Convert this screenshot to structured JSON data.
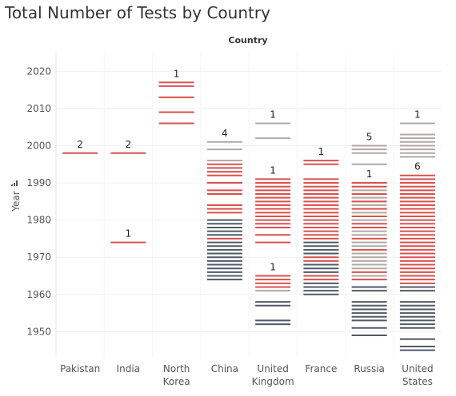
{
  "title": "Total Number of Tests by Country",
  "chart_data": {
    "type": "gantt-ticks",
    "title": "Total Number of Tests by Country",
    "column_header": "Country",
    "ylabel": "Year",
    "ylim": [
      1943,
      2025
    ],
    "y_ticks": [
      1950,
      1960,
      1970,
      1980,
      1990,
      2000,
      2010,
      2020
    ],
    "colors": {
      "red": "#d9514e",
      "gray": "#b0a9a5",
      "dark": "#505a66"
    },
    "categories": [
      {
        "label": [
          "Pakistan"
        ],
        "ticks": [
          {
            "year": 1998,
            "c": "red"
          }
        ],
        "labels": [
          {
            "text": "2",
            "year": 1998
          }
        ]
      },
      {
        "label": [
          "India"
        ],
        "ticks": [
          {
            "year": 1998,
            "c": "red"
          },
          {
            "year": 1974,
            "c": "red"
          }
        ],
        "labels": [
          {
            "text": "2",
            "year": 1998
          },
          {
            "text": "1",
            "year": 1974
          }
        ]
      },
      {
        "label": [
          "North",
          "Korea"
        ],
        "ticks": [
          {
            "year": 2017,
            "c": "red"
          },
          {
            "year": 2016,
            "c": "red"
          },
          {
            "year": 2013,
            "c": "red"
          },
          {
            "year": 2009,
            "c": "red"
          },
          {
            "year": 2006,
            "c": "red"
          }
        ],
        "labels": [
          {
            "text": "1",
            "year": 2017
          }
        ]
      },
      {
        "label": [
          "China"
        ],
        "ticks": [
          {
            "year": 1996,
            "c": "gray"
          },
          {
            "year": 1995,
            "c": "red"
          },
          {
            "year": 1994,
            "c": "red"
          },
          {
            "year": 1993,
            "c": "red"
          },
          {
            "year": 1992,
            "c": "red"
          },
          {
            "year": 1990,
            "c": "red"
          },
          {
            "year": 1988,
            "c": "red"
          },
          {
            "year": 1987,
            "c": "red"
          },
          {
            "year": 1984,
            "c": "red"
          },
          {
            "year": 1983,
            "c": "red"
          },
          {
            "year": 1982,
            "c": "red"
          },
          {
            "year": 1980,
            "c": "dark"
          },
          {
            "year": 1979,
            "c": "dark"
          },
          {
            "year": 1978,
            "c": "dark"
          },
          {
            "year": 1977,
            "c": "dark"
          },
          {
            "year": 1976,
            "c": "dark"
          },
          {
            "year": 1975,
            "c": "red"
          },
          {
            "year": 1974,
            "c": "dark"
          },
          {
            "year": 1973,
            "c": "dark"
          },
          {
            "year": 1972,
            "c": "dark"
          },
          {
            "year": 1971,
            "c": "dark"
          },
          {
            "year": 1970,
            "c": "dark"
          },
          {
            "year": 1969,
            "c": "dark"
          },
          {
            "year": 1968,
            "c": "dark"
          },
          {
            "year": 1967,
            "c": "dark"
          },
          {
            "year": 1966,
            "c": "dark"
          },
          {
            "year": 1965,
            "c": "dark"
          },
          {
            "year": 1964,
            "c": "dark"
          },
          {
            "year": 2001,
            "c": "gray"
          },
          {
            "year": 1999,
            "c": "gray"
          }
        ],
        "labels": [
          {
            "text": "4",
            "year": 2001
          }
        ]
      },
      {
        "label": [
          "United",
          "Kingdom"
        ],
        "ticks": [
          {
            "year": 2006,
            "c": "gray"
          },
          {
            "year": 2002,
            "c": "gray"
          },
          {
            "year": 1991,
            "c": "red"
          },
          {
            "year": 1990,
            "c": "red"
          },
          {
            "year": 1989,
            "c": "red"
          },
          {
            "year": 1988,
            "c": "red"
          },
          {
            "year": 1987,
            "c": "red"
          },
          {
            "year": 1986,
            "c": "red"
          },
          {
            "year": 1985,
            "c": "red"
          },
          {
            "year": 1984,
            "c": "red"
          },
          {
            "year": 1983,
            "c": "red"
          },
          {
            "year": 1982,
            "c": "red"
          },
          {
            "year": 1981,
            "c": "red"
          },
          {
            "year": 1980,
            "c": "red"
          },
          {
            "year": 1979,
            "c": "red"
          },
          {
            "year": 1978,
            "c": "red"
          },
          {
            "year": 1976,
            "c": "red"
          },
          {
            "year": 1974,
            "c": "red"
          },
          {
            "year": 1965,
            "c": "red"
          },
          {
            "year": 1964,
            "c": "red"
          },
          {
            "year": 1963,
            "c": "red"
          },
          {
            "year": 1962,
            "c": "red"
          },
          {
            "year": 1961,
            "c": "gray"
          },
          {
            "year": 1958,
            "c": "dark"
          },
          {
            "year": 1957,
            "c": "dark"
          },
          {
            "year": 1953,
            "c": "dark"
          },
          {
            "year": 1952,
            "c": "dark"
          }
        ],
        "labels": [
          {
            "text": "1",
            "year": 2006
          },
          {
            "text": "1",
            "year": 1991
          },
          {
            "text": "1",
            "year": 1965
          }
        ]
      },
      {
        "label": [
          "France"
        ],
        "ticks": [
          {
            "year": 1996,
            "c": "red"
          },
          {
            "year": 1995,
            "c": "red"
          },
          {
            "year": 1991,
            "c": "red"
          },
          {
            "year": 1990,
            "c": "red"
          },
          {
            "year": 1989,
            "c": "red"
          },
          {
            "year": 1988,
            "c": "red"
          },
          {
            "year": 1987,
            "c": "red"
          },
          {
            "year": 1986,
            "c": "red"
          },
          {
            "year": 1985,
            "c": "red"
          },
          {
            "year": 1984,
            "c": "red"
          },
          {
            "year": 1983,
            "c": "red"
          },
          {
            "year": 1982,
            "c": "red"
          },
          {
            "year": 1981,
            "c": "red"
          },
          {
            "year": 1980,
            "c": "red"
          },
          {
            "year": 1979,
            "c": "red"
          },
          {
            "year": 1978,
            "c": "red"
          },
          {
            "year": 1977,
            "c": "red"
          },
          {
            "year": 1976,
            "c": "red"
          },
          {
            "year": 1975,
            "c": "red"
          },
          {
            "year": 1974,
            "c": "dark"
          },
          {
            "year": 1973,
            "c": "dark"
          },
          {
            "year": 1972,
            "c": "dark"
          },
          {
            "year": 1971,
            "c": "dark"
          },
          {
            "year": 1970,
            "c": "red"
          },
          {
            "year": 1969,
            "c": "red"
          },
          {
            "year": 1968,
            "c": "dark"
          },
          {
            "year": 1967,
            "c": "dark"
          },
          {
            "year": 1966,
            "c": "dark"
          },
          {
            "year": 1965,
            "c": "red"
          },
          {
            "year": 1964,
            "c": "red"
          },
          {
            "year": 1963,
            "c": "dark"
          },
          {
            "year": 1962,
            "c": "dark"
          },
          {
            "year": 1961,
            "c": "dark"
          },
          {
            "year": 1960,
            "c": "dark"
          }
        ],
        "labels": [
          {
            "text": "1",
            "year": 1996
          }
        ]
      },
      {
        "label": [
          "Russia"
        ],
        "ticks": [
          {
            "year": 2000,
            "c": "gray"
          },
          {
            "year": 1999,
            "c": "gray"
          },
          {
            "year": 1998,
            "c": "gray"
          },
          {
            "year": 1995,
            "c": "gray"
          },
          {
            "year": 1990,
            "c": "red"
          },
          {
            "year": 1989,
            "c": "red"
          },
          {
            "year": 1988,
            "c": "gray"
          },
          {
            "year": 1987,
            "c": "red"
          },
          {
            "year": 1986,
            "c": "gray"
          },
          {
            "year": 1985,
            "c": "red"
          },
          {
            "year": 1984,
            "c": "gray"
          },
          {
            "year": 1983,
            "c": "red"
          },
          {
            "year": 1982,
            "c": "gray"
          },
          {
            "year": 1981,
            "c": "red"
          },
          {
            "year": 1980,
            "c": "gray"
          },
          {
            "year": 1979,
            "c": "red"
          },
          {
            "year": 1978,
            "c": "red"
          },
          {
            "year": 1977,
            "c": "gray"
          },
          {
            "year": 1976,
            "c": "gray"
          },
          {
            "year": 1975,
            "c": "red"
          },
          {
            "year": 1974,
            "c": "gray"
          },
          {
            "year": 1973,
            "c": "gray"
          },
          {
            "year": 1972,
            "c": "red"
          },
          {
            "year": 1971,
            "c": "gray"
          },
          {
            "year": 1970,
            "c": "gray"
          },
          {
            "year": 1969,
            "c": "gray"
          },
          {
            "year": 1968,
            "c": "gray"
          },
          {
            "year": 1967,
            "c": "gray"
          },
          {
            "year": 1966,
            "c": "red"
          },
          {
            "year": 1965,
            "c": "gray"
          },
          {
            "year": 1964,
            "c": "red"
          },
          {
            "year": 1962,
            "c": "dark"
          },
          {
            "year": 1961,
            "c": "dark"
          },
          {
            "year": 1958,
            "c": "dark"
          },
          {
            "year": 1957,
            "c": "dark"
          },
          {
            "year": 1956,
            "c": "dark"
          },
          {
            "year": 1955,
            "c": "dark"
          },
          {
            "year": 1954,
            "c": "dark"
          },
          {
            "year": 1953,
            "c": "dark"
          },
          {
            "year": 1951,
            "c": "dark"
          },
          {
            "year": 1949,
            "c": "dark"
          }
        ],
        "labels": [
          {
            "text": "5",
            "year": 2000
          },
          {
            "text": "1",
            "year": 1990
          }
        ]
      },
      {
        "label": [
          "United",
          "States"
        ],
        "ticks": [
          {
            "year": 2006,
            "c": "gray"
          },
          {
            "year": 2003,
            "c": "gray"
          },
          {
            "year": 2002,
            "c": "gray"
          },
          {
            "year": 2001,
            "c": "gray"
          },
          {
            "year": 2000,
            "c": "gray"
          },
          {
            "year": 1999,
            "c": "gray"
          },
          {
            "year": 1998,
            "c": "gray"
          },
          {
            "year": 1997,
            "c": "gray"
          },
          {
            "year": 1992,
            "c": "red"
          },
          {
            "year": 1991,
            "c": "red"
          },
          {
            "year": 1990,
            "c": "red"
          },
          {
            "year": 1989,
            "c": "red"
          },
          {
            "year": 1988,
            "c": "red"
          },
          {
            "year": 1987,
            "c": "red"
          },
          {
            "year": 1986,
            "c": "red"
          },
          {
            "year": 1985,
            "c": "red"
          },
          {
            "year": 1984,
            "c": "red"
          },
          {
            "year": 1983,
            "c": "red"
          },
          {
            "year": 1982,
            "c": "red"
          },
          {
            "year": 1981,
            "c": "red"
          },
          {
            "year": 1980,
            "c": "red"
          },
          {
            "year": 1979,
            "c": "red"
          },
          {
            "year": 1978,
            "c": "red"
          },
          {
            "year": 1977,
            "c": "red"
          },
          {
            "year": 1976,
            "c": "red"
          },
          {
            "year": 1975,
            "c": "red"
          },
          {
            "year": 1974,
            "c": "red"
          },
          {
            "year": 1973,
            "c": "red"
          },
          {
            "year": 1972,
            "c": "red"
          },
          {
            "year": 1971,
            "c": "red"
          },
          {
            "year": 1970,
            "c": "red"
          },
          {
            "year": 1969,
            "c": "red"
          },
          {
            "year": 1968,
            "c": "red"
          },
          {
            "year": 1967,
            "c": "red"
          },
          {
            "year": 1966,
            "c": "red"
          },
          {
            "year": 1965,
            "c": "red"
          },
          {
            "year": 1964,
            "c": "red"
          },
          {
            "year": 1963,
            "c": "red"
          },
          {
            "year": 1962,
            "c": "dark"
          },
          {
            "year": 1961,
            "c": "dark"
          },
          {
            "year": 1958,
            "c": "dark"
          },
          {
            "year": 1957,
            "c": "dark"
          },
          {
            "year": 1956,
            "c": "dark"
          },
          {
            "year": 1955,
            "c": "dark"
          },
          {
            "year": 1954,
            "c": "dark"
          },
          {
            "year": 1953,
            "c": "dark"
          },
          {
            "year": 1952,
            "c": "dark"
          },
          {
            "year": 1951,
            "c": "dark"
          },
          {
            "year": 1948,
            "c": "dark"
          },
          {
            "year": 1946,
            "c": "dark"
          },
          {
            "year": 1945,
            "c": "dark"
          }
        ],
        "labels": [
          {
            "text": "1",
            "year": 2006
          },
          {
            "text": "6",
            "year": 1992
          }
        ]
      }
    ]
  }
}
